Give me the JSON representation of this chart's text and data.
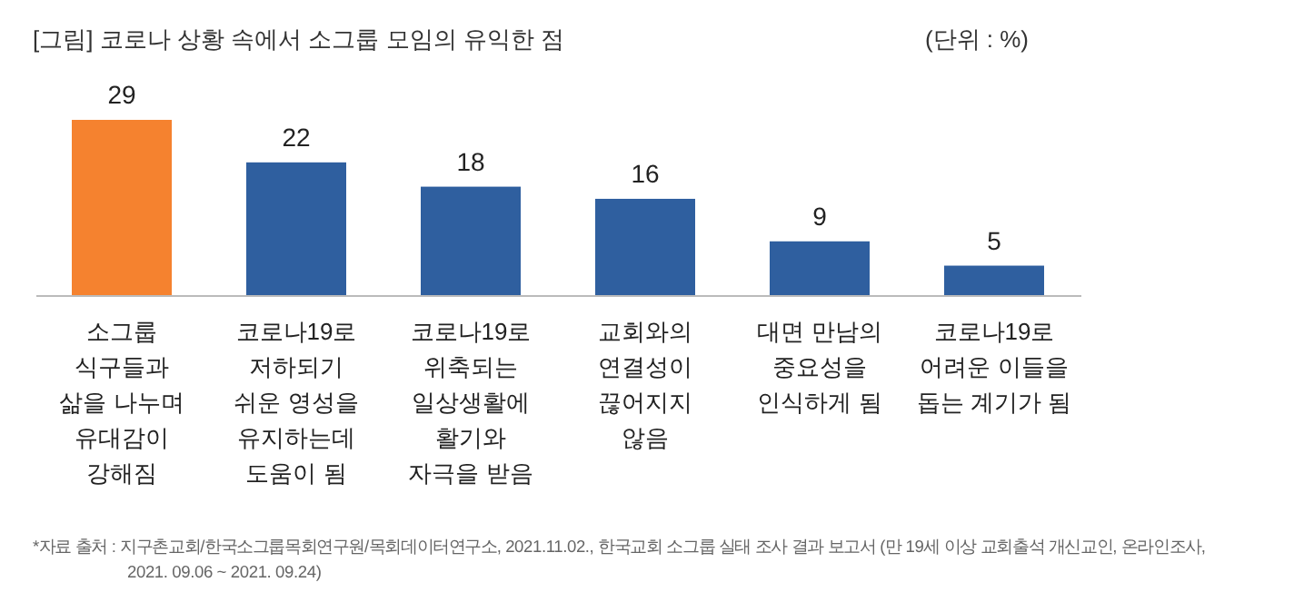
{
  "chart_data": {
    "type": "bar",
    "title": "[그림] 코로나 상황 속에서 소그룹 모임의 유익한 점",
    "subtitle": "(단위 : %)",
    "categories": [
      "소그룹\n식구들과\n삶을 나누며\n유대감이\n강해짐",
      "코로나19로\n저하되기\n쉬운 영성을\n유지하는데\n도움이 됨",
      "코로나19로\n위축되는\n일상생활에\n활기와\n자극을 받음",
      "교회와의\n연결성이\n끊어지지\n않음",
      "대면 만남의\n중요성을\n인식하게 됨",
      "코로나19로\n어려운 이들을\n돕는 계기가 됨"
    ],
    "values": [
      29,
      22,
      18,
      16,
      9,
      5
    ],
    "colors": [
      "#f5822f",
      "#2f5f9f",
      "#2f5f9f",
      "#2f5f9f",
      "#2f5f9f",
      "#2f5f9f"
    ],
    "data_labels": true,
    "annotations": [
      "*자료 출처 : 지구촌교회/한국소그룹목회연구원/목회데이터연구소, 2021.11.02., 한국교회 소그룹 실태 조사 결과 보고서 (만 19세 이상 교회출석 개신교인, 온라인조사,\n2021. 09.06 ~ 2021. 09.24)"
    ]
  }
}
